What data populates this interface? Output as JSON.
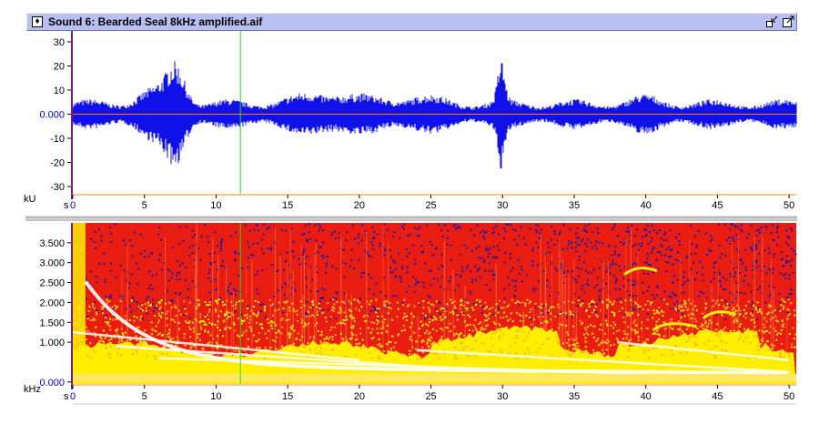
{
  "window": {
    "title": "Sound 6: Bearded Seal 8kHz amplified.aif",
    "icon": "sound-file-icon",
    "buttons": [
      "shrink-icon",
      "expand-icon"
    ]
  },
  "waveform": {
    "unit": "kU",
    "y_ticks": [
      {
        "v": 30,
        "label": "30"
      },
      {
        "v": 20,
        "label": "20"
      },
      {
        "v": 10,
        "label": "10"
      },
      {
        "v": 0,
        "label": "0.000"
      },
      {
        "v": -10,
        "label": "-10"
      },
      {
        "v": -20,
        "label": "-20"
      },
      {
        "v": -30,
        "label": "-30"
      }
    ],
    "ylim": [
      -33,
      33
    ],
    "color": "#1010e8",
    "center_line_color": "#ff8800",
    "zero_label_color": "#0000cc"
  },
  "spectrogram": {
    "unit": "kHz",
    "y_ticks": [
      {
        "v": 3.5,
        "label": "3.500"
      },
      {
        "v": 3.0,
        "label": "3.000"
      },
      {
        "v": 2.5,
        "label": "2.500"
      },
      {
        "v": 2.0,
        "label": "2.000"
      },
      {
        "v": 1.5,
        "label": "1.500"
      },
      {
        "v": 1.0,
        "label": "1.000"
      },
      {
        "v": 0.0,
        "label": "0.000"
      }
    ],
    "ylim": [
      -0.05,
      4.0
    ],
    "colors": {
      "low": "#1a1aa8",
      "mid": "#e81c10",
      "high": "#ffee00",
      "peak": "#ffffff"
    }
  },
  "time_axis": {
    "unit": "s",
    "xlim": [
      0,
      50.5
    ],
    "ticks": [
      0,
      5,
      10,
      15,
      20,
      25,
      30,
      35,
      40,
      45,
      50
    ]
  },
  "cursor": {
    "time": 11.7,
    "color": "#22dd22"
  }
}
